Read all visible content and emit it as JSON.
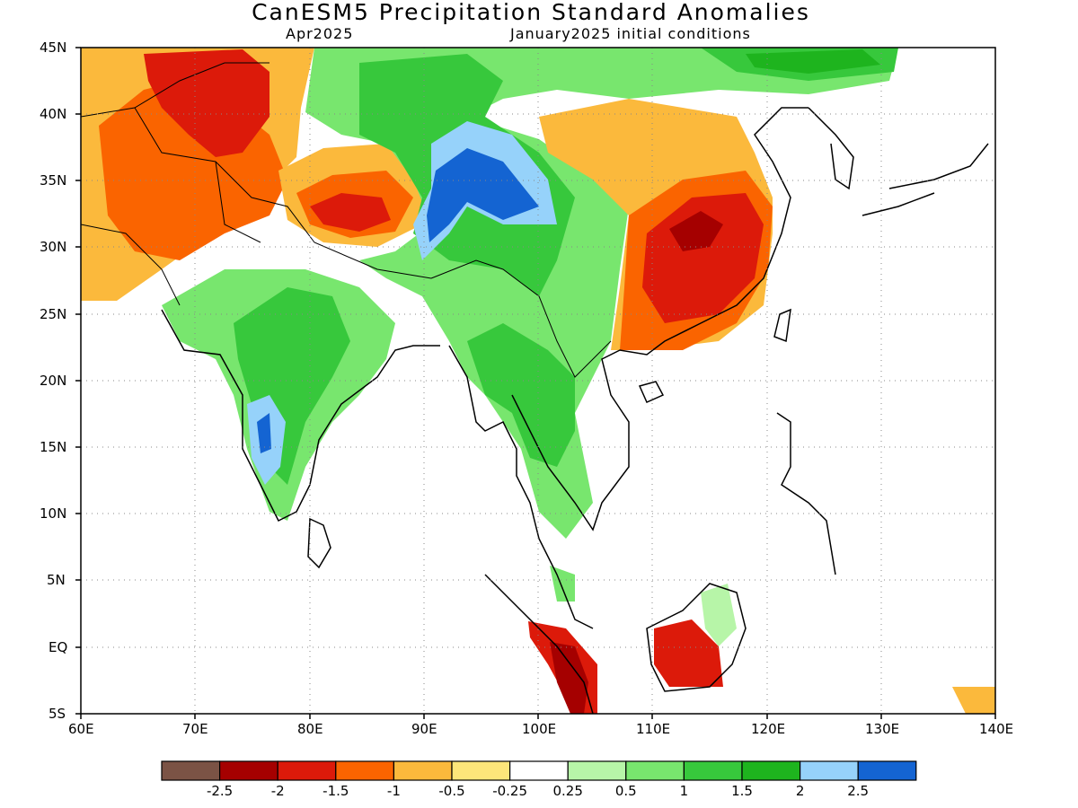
{
  "header": {
    "title": "CanESM5 Precipitation Standard Anomalies",
    "valid_month": "Apr2025",
    "init_label": "January2025 initial conditions"
  },
  "map": {
    "lon_labels": [
      "60E",
      "70E",
      "80E",
      "90E",
      "100E",
      "110E",
      "120E",
      "130E",
      "140E"
    ],
    "lat_labels": [
      "45N",
      "40N",
      "35N",
      "30N",
      "25N",
      "20N",
      "15N",
      "10N",
      "5N",
      "EQ",
      "5S"
    ],
    "lon_range": [
      60,
      140
    ],
    "lat_range": [
      -5,
      45
    ],
    "grid": "dotted"
  },
  "legend": {
    "colors": [
      "#7b5345",
      "#a50000",
      "#dc1a0a",
      "#fa6400",
      "#fbb93c",
      "#fde67a",
      "#ffffff",
      "#b7f5a8",
      "#78e66e",
      "#37c83c",
      "#1eb41e",
      "#96d2fa",
      "#1464d2"
    ],
    "labels": [
      "-2.5",
      "-2",
      "-1.5",
      "-1",
      "-0.5",
      "-0.25",
      "0.25",
      "0.5",
      "1",
      "1.5",
      "2",
      "2.5"
    ]
  }
}
